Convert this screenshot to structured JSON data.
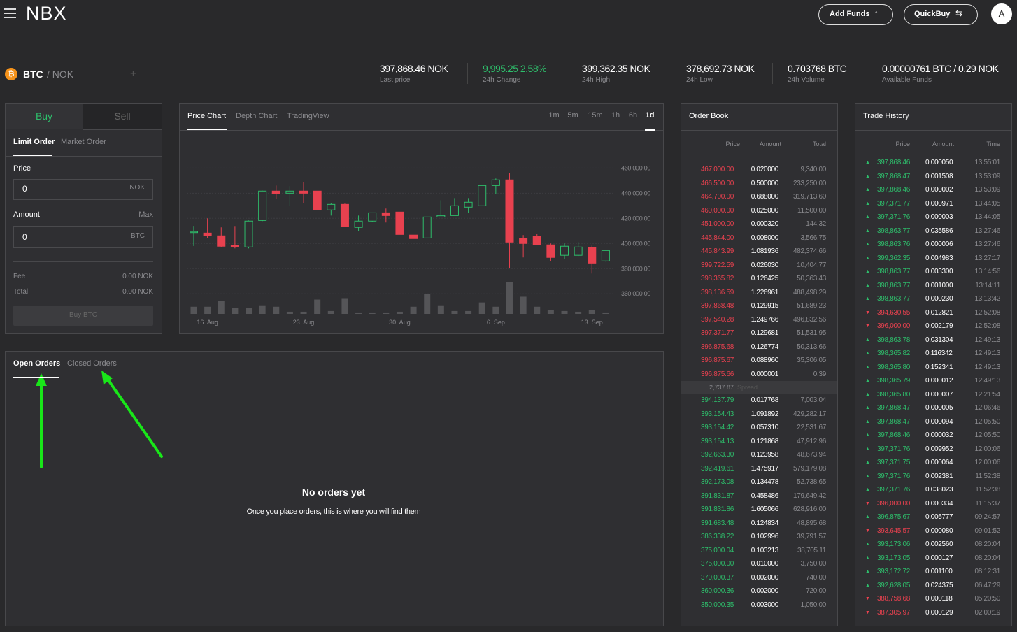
{
  "header": {
    "logo": "NBX",
    "add_funds": "Add Funds",
    "quick_buy": "QuickBuy",
    "avatar": "A"
  },
  "market": {
    "base": "BTC",
    "quote": "/ NOK"
  },
  "stats": [
    {
      "value": "397,868.46 NOK",
      "label": "Last price"
    },
    {
      "value": "9,995.25 2.58%",
      "label": "24h Change",
      "positive": true
    },
    {
      "value": "399,362.35 NOK",
      "label": "24h High"
    },
    {
      "value": "378,692.73 NOK",
      "label": "24h Low"
    },
    {
      "value": "0.703768 BTC",
      "label": "24h Volume"
    },
    {
      "value": "0.00000761 BTC / 0.29 NOK",
      "label": "Available Funds"
    }
  ],
  "order_form": {
    "tabs": [
      "Buy",
      "Sell"
    ],
    "types": [
      "Limit Order",
      "Market Order"
    ],
    "price_label": "Price",
    "price_value": "0",
    "price_unit": "NOK",
    "amount_label": "Amount",
    "max": "Max",
    "amount_value": "0",
    "amount_unit": "BTC",
    "fee_label": "Fee",
    "fee": "0.00 NOK",
    "total_label": "Total",
    "total": "0.00 NOK",
    "submit": "Buy BTC"
  },
  "price_chart": {
    "type": "candlestick",
    "tabs": [
      "Price Chart",
      "Depth Chart",
      "TradingView"
    ],
    "intervals": [
      "1m",
      "5m",
      "15m",
      "1h",
      "6h",
      "1d"
    ],
    "active_interval": "1d",
    "ylim": [
      344000,
      488000
    ],
    "yticks": [
      {
        "value": 460000,
        "label": "460,000.00"
      },
      {
        "value": 440000,
        "label": "440,000.00"
      },
      {
        "value": 420000,
        "label": "420,000.00"
      },
      {
        "value": 400000,
        "label": "400,000.00"
      },
      {
        "value": 380000,
        "label": "380,000.00"
      },
      {
        "value": 360000,
        "label": "360,000.00"
      }
    ],
    "grid": true,
    "up_color": "#2ebd6b",
    "down_color": "#e8414f",
    "categories": [
      null,
      "16. Aug",
      null,
      null,
      null,
      null,
      null,
      null,
      "23. Aug",
      null,
      null,
      null,
      null,
      null,
      null,
      "30. Aug",
      null,
      null,
      null,
      null,
      null,
      null,
      "6. Sep",
      null,
      null,
      null,
      null,
      null,
      null,
      "13. Sep",
      null
    ],
    "candles": [
      {
        "open": 409000,
        "high": 414000,
        "low": 398000,
        "close": 409500
      },
      {
        "open": 408300,
        "high": 420000,
        "low": 404500,
        "close": 406100
      },
      {
        "open": 406100,
        "high": 412800,
        "low": 397200,
        "close": 397800
      },
      {
        "open": 398500,
        "high": 413900,
        "low": 396100,
        "close": 397800
      },
      {
        "open": 397200,
        "high": 418300,
        "low": 396100,
        "close": 417800
      },
      {
        "open": 418300,
        "high": 442000,
        "low": 417800,
        "close": 441700
      },
      {
        "open": 441700,
        "high": 446100,
        "low": 435600,
        "close": 439400
      },
      {
        "open": 440000,
        "high": 445600,
        "low": 430000,
        "close": 441700
      },
      {
        "open": 441700,
        "high": 448900,
        "low": 432200,
        "close": 440000
      },
      {
        "open": 441700,
        "high": 441700,
        "low": 426700,
        "close": 426700
      },
      {
        "open": 426700,
        "high": 432200,
        "low": 422200,
        "close": 431100
      },
      {
        "open": 431100,
        "high": 431700,
        "low": 413300,
        "close": 413300
      },
      {
        "open": 412800,
        "high": 422200,
        "low": 410000,
        "close": 417800
      },
      {
        "open": 417800,
        "high": 424400,
        "low": 417200,
        "close": 424400
      },
      {
        "open": 424400,
        "high": 427800,
        "low": 416700,
        "close": 422200
      },
      {
        "open": 425000,
        "high": 425000,
        "low": 407200,
        "close": 407200
      },
      {
        "open": 406700,
        "high": 406700,
        "low": 403900,
        "close": 403900
      },
      {
        "open": 404400,
        "high": 421100,
        "low": 404400,
        "close": 421100
      },
      {
        "open": 421100,
        "high": 434400,
        "low": 421100,
        "close": 422200
      },
      {
        "open": 422200,
        "high": 436100,
        "low": 422200,
        "close": 430000
      },
      {
        "open": 428900,
        "high": 436100,
        "low": 424400,
        "close": 432800
      },
      {
        "open": 430000,
        "high": 446100,
        "low": 430000,
        "close": 446100
      },
      {
        "open": 446100,
        "high": 451700,
        "low": 439400,
        "close": 450600
      },
      {
        "open": 450600,
        "high": 456100,
        "low": 380600,
        "close": 401100
      },
      {
        "open": 403900,
        "high": 406700,
        "low": 388900,
        "close": 400000
      },
      {
        "open": 405600,
        "high": 407800,
        "low": 400000,
        "close": 398900
      },
      {
        "open": 398900,
        "high": 400000,
        "low": 386100,
        "close": 388900
      },
      {
        "open": 390600,
        "high": 400000,
        "low": 387800,
        "close": 397800
      },
      {
        "open": 390600,
        "high": 401100,
        "low": 390000,
        "close": 397200
      },
      {
        "open": 396700,
        "high": 398300,
        "low": 376100,
        "close": 384400
      },
      {
        "open": 386100,
        "high": 394400,
        "low": 385600,
        "close": 394400
      }
    ],
    "volumes": [
      10,
      10,
      18,
      8,
      8,
      12,
      10,
      3,
      3,
      20,
      4,
      22,
      2,
      2,
      2,
      3,
      10,
      28,
      12,
      4,
      4,
      16,
      10,
      44,
      24,
      10,
      5,
      4,
      3,
      5,
      2
    ]
  },
  "orders": {
    "tabs": [
      "Open Orders",
      "Closed Orders"
    ],
    "empty_title": "No orders yet",
    "empty_text": "Once you place orders, this is where you will find them"
  },
  "order_book": {
    "title": "Order Book",
    "columns": [
      "Price",
      "Amount",
      "Total"
    ],
    "asks": [
      [
        "467,000.00",
        "0.020000",
        "9,340.00"
      ],
      [
        "466,500.00",
        "0.500000",
        "233,250.00"
      ],
      [
        "464,700.00",
        "0.688000",
        "319,713.60"
      ],
      [
        "460,000.00",
        "0.025000",
        "11,500.00"
      ],
      [
        "451,000.00",
        "0.000320",
        "144.32"
      ],
      [
        "445,844.00",
        "0.008000",
        "3,566.75"
      ],
      [
        "445,843.99",
        "1.081936",
        "482,374.66"
      ],
      [
        "399,722.59",
        "0.026030",
        "10,404.77"
      ],
      [
        "398,365.82",
        "0.126425",
        "50,363.43"
      ],
      [
        "398,136.59",
        "1.226961",
        "488,498.29"
      ],
      [
        "397,868.48",
        "0.129915",
        "51,689.23"
      ],
      [
        "397,540.28",
        "1.249766",
        "496,832.56"
      ],
      [
        "397,371.77",
        "0.129681",
        "51,531.95"
      ],
      [
        "396,875.68",
        "0.126774",
        "50,313.66"
      ],
      [
        "396,875.67",
        "0.088960",
        "35,306.05"
      ],
      [
        "396,875.66",
        "0.000001",
        "0.39"
      ]
    ],
    "spread": "2,737.87",
    "spread_label": "Spread",
    "bids": [
      [
        "394,137.79",
        "0.017768",
        "7,003.04"
      ],
      [
        "393,154.43",
        "1.091892",
        "429,282.17"
      ],
      [
        "393,154.42",
        "0.057310",
        "22,531.67"
      ],
      [
        "393,154.13",
        "0.121868",
        "47,912.96"
      ],
      [
        "392,663.30",
        "0.123958",
        "48,673.94"
      ],
      [
        "392,419.61",
        "1.475917",
        "579,179.08"
      ],
      [
        "392,173.08",
        "0.134478",
        "52,738.65"
      ],
      [
        "391,831.87",
        "0.458486",
        "179,649.42"
      ],
      [
        "391,831.86",
        "1.605066",
        "628,916.00"
      ],
      [
        "391,683.48",
        "0.124834",
        "48,895.68"
      ],
      [
        "386,338.22",
        "0.102996",
        "39,791.57"
      ],
      [
        "375,000.04",
        "0.103213",
        "38,705.11"
      ],
      [
        "375,000.00",
        "0.010000",
        "3,750.00"
      ],
      [
        "370,000.37",
        "0.002000",
        "740.00"
      ],
      [
        "360,000.36",
        "0.002000",
        "720.00"
      ],
      [
        "350,000.35",
        "0.003000",
        "1,050.00"
      ]
    ]
  },
  "trade_history": {
    "title": "Trade History",
    "columns": [
      "Price",
      "Amount",
      "Time"
    ],
    "trades": [
      {
        "price": "397,868.46",
        "amount": "0.000050",
        "time": "13:55:01",
        "side": "buy"
      },
      {
        "price": "397,868.47",
        "amount": "0.001508",
        "time": "13:53:09",
        "side": "buy"
      },
      {
        "price": "397,868.46",
        "amount": "0.000002",
        "time": "13:53:09",
        "side": "buy"
      },
      {
        "price": "397,371.77",
        "amount": "0.000971",
        "time": "13:44:05",
        "side": "buy"
      },
      {
        "price": "397,371.76",
        "amount": "0.000003",
        "time": "13:44:05",
        "side": "buy"
      },
      {
        "price": "398,863.77",
        "amount": "0.035586",
        "time": "13:27:46",
        "side": "buy"
      },
      {
        "price": "398,863.76",
        "amount": "0.000006",
        "time": "13:27:46",
        "side": "buy"
      },
      {
        "price": "399,362.35",
        "amount": "0.004983",
        "time": "13:27:17",
        "side": "buy"
      },
      {
        "price": "398,863.77",
        "amount": "0.003300",
        "time": "13:14:56",
        "side": "buy"
      },
      {
        "price": "398,863.77",
        "amount": "0.001000",
        "time": "13:14:11",
        "side": "buy"
      },
      {
        "price": "398,863.77",
        "amount": "0.000230",
        "time": "13:13:42",
        "side": "buy"
      },
      {
        "price": "394,630.55",
        "amount": "0.012821",
        "time": "12:52:08",
        "side": "sell"
      },
      {
        "price": "396,000.00",
        "amount": "0.002179",
        "time": "12:52:08",
        "side": "sell"
      },
      {
        "price": "398,863.78",
        "amount": "0.031304",
        "time": "12:49:13",
        "side": "buy"
      },
      {
        "price": "398,365.82",
        "amount": "0.116342",
        "time": "12:49:13",
        "side": "buy"
      },
      {
        "price": "398,365.80",
        "amount": "0.152341",
        "time": "12:49:13",
        "side": "buy"
      },
      {
        "price": "398,365.79",
        "amount": "0.000012",
        "time": "12:49:13",
        "side": "buy"
      },
      {
        "price": "398,365.80",
        "amount": "0.000007",
        "time": "12:21:54",
        "side": "buy"
      },
      {
        "price": "397,868.47",
        "amount": "0.000005",
        "time": "12:06:46",
        "side": "buy"
      },
      {
        "price": "397,868.47",
        "amount": "0.000094",
        "time": "12:05:50",
        "side": "buy"
      },
      {
        "price": "397,868.46",
        "amount": "0.000032",
        "time": "12:05:50",
        "side": "buy"
      },
      {
        "price": "397,371.76",
        "amount": "0.009952",
        "time": "12:00:06",
        "side": "buy"
      },
      {
        "price": "397,371.75",
        "amount": "0.000064",
        "time": "12:00:06",
        "side": "buy"
      },
      {
        "price": "397,371.76",
        "amount": "0.002381",
        "time": "11:52:38",
        "side": "buy"
      },
      {
        "price": "397,371.76",
        "amount": "0.038023",
        "time": "11:52:38",
        "side": "buy"
      },
      {
        "price": "396,000.00",
        "amount": "0.000334",
        "time": "11:15:37",
        "side": "sell"
      },
      {
        "price": "396,875.67",
        "amount": "0.005777",
        "time": "09:24:57",
        "side": "buy"
      },
      {
        "price": "393,645.57",
        "amount": "0.000080",
        "time": "09:01:52",
        "side": "sell"
      },
      {
        "price": "393,173.06",
        "amount": "0.002560",
        "time": "08:20:04",
        "side": "buy"
      },
      {
        "price": "393,173.05",
        "amount": "0.000127",
        "time": "08:20:04",
        "side": "buy"
      },
      {
        "price": "393,172.72",
        "amount": "0.001100",
        "time": "08:12:31",
        "side": "buy"
      },
      {
        "price": "392,628.05",
        "amount": "0.024375",
        "time": "06:47:29",
        "side": "buy"
      },
      {
        "price": "388,758.68",
        "amount": "0.000118",
        "time": "05:20:50",
        "side": "sell"
      },
      {
        "price": "387,305.97",
        "amount": "0.000129",
        "time": "02:00:19",
        "side": "sell"
      }
    ]
  }
}
